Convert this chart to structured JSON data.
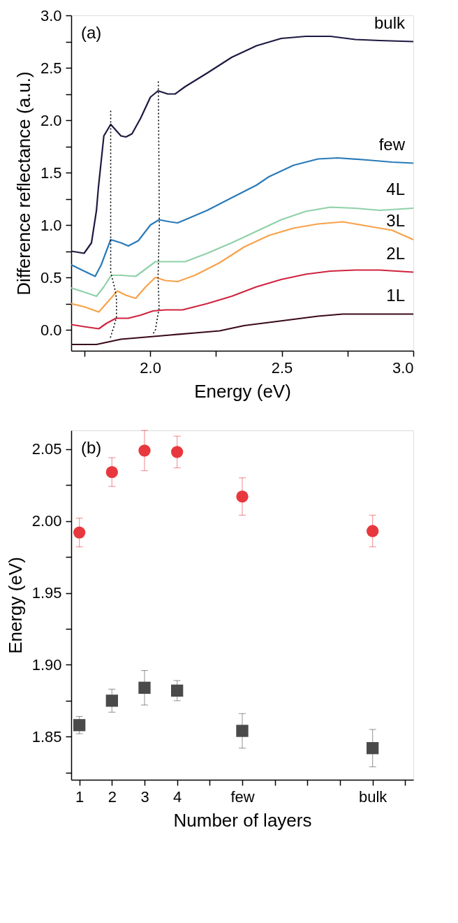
{
  "chart_data": [
    {
      "type": "line",
      "xlabel": "Energy (eV)",
      "ylabel": "Difference reflectance (a.u.)",
      "annotations": [
        "(a)"
      ],
      "grid": false,
      "line_style": "solid",
      "xlim": [
        1.7,
        3.0
      ],
      "xticks": [
        {
          "value": 1.75,
          "label": null
        },
        {
          "value": 2.0,
          "label": "2.0"
        },
        {
          "value": 2.25,
          "label": null
        },
        2.5,
        {
          "value": 2.75,
          "label": null
        },
        {
          "value": 3.0,
          "label": "3.0"
        }
      ],
      "ylim": [
        -0.2,
        3.0
      ],
      "yticks": [
        {
          "value": 0,
          "label": "0.0"
        },
        {
          "value": 0.25,
          "label": null
        },
        0.5,
        {
          "value": 0.75,
          "label": null
        },
        {
          "value": 1,
          "label": "1.0"
        },
        {
          "value": 1.25,
          "label": null
        },
        1.5,
        {
          "value": 1.75,
          "label": null
        },
        {
          "value": 2,
          "label": "2.0"
        },
        {
          "value": 2.25,
          "label": null
        },
        2.5,
        {
          "value": 2.75,
          "label": null
        },
        {
          "value": 3,
          "label": "3.0"
        }
      ],
      "series": [
        {
          "name": "bulk",
          "color": "#1c1a40",
          "x": [
            1.7,
            1.749,
            1.777,
            1.796,
            1.803,
            1.824,
            1.85,
            1.889,
            1.908,
            1.931,
            1.964,
            2.001,
            2.03,
            2.067,
            2.095,
            2.133,
            2.217,
            2.31,
            2.404,
            2.498,
            2.591,
            2.685,
            2.779,
            2.872,
            3.0
          ],
          "values": [
            0.75,
            0.73,
            0.83,
            1.14,
            1.35,
            1.85,
            1.96,
            1.85,
            1.84,
            1.87,
            2.02,
            2.22,
            2.28,
            2.25,
            2.25,
            2.32,
            2.45,
            2.6,
            2.71,
            2.78,
            2.8,
            2.8,
            2.77,
            2.76,
            2.75
          ]
        },
        {
          "name": "few",
          "color": "#2a7ab8",
          "x": [
            1.7,
            1.749,
            1.791,
            1.814,
            1.85,
            1.889,
            1.917,
            1.955,
            2.001,
            2.034,
            2.076,
            2.104,
            2.133,
            2.217,
            2.31,
            2.404,
            2.451,
            2.545,
            2.638,
            2.713,
            2.825,
            2.919,
            3.0
          ],
          "values": [
            0.62,
            0.56,
            0.51,
            0.62,
            0.86,
            0.83,
            0.8,
            0.85,
            1.0,
            1.05,
            1.03,
            1.02,
            1.05,
            1.14,
            1.26,
            1.38,
            1.46,
            1.57,
            1.63,
            1.64,
            1.62,
            1.6,
            1.59
          ]
        },
        {
          "name": "4L",
          "color": "#8fd1a8",
          "x": [
            1.7,
            1.749,
            1.796,
            1.824,
            1.852,
            1.889,
            1.945,
            1.983,
            2.02,
            2.076,
            2.133,
            2.217,
            2.31,
            2.404,
            2.498,
            2.591,
            2.685,
            2.779,
            2.872,
            3.0
          ],
          "values": [
            0.4,
            0.36,
            0.32,
            0.41,
            0.52,
            0.52,
            0.51,
            0.58,
            0.65,
            0.65,
            0.65,
            0.73,
            0.83,
            0.94,
            1.05,
            1.13,
            1.17,
            1.16,
            1.14,
            1.16
          ]
        },
        {
          "name": "3L",
          "color": "#f7a24a",
          "x": [
            1.7,
            1.749,
            1.805,
            1.833,
            1.875,
            1.908,
            1.945,
            1.983,
            2.02,
            2.058,
            2.104,
            2.17,
            2.264,
            2.357,
            2.451,
            2.545,
            2.638,
            2.732,
            2.825,
            2.919,
            3.0
          ],
          "values": [
            0.25,
            0.22,
            0.17,
            0.25,
            0.37,
            0.33,
            0.3,
            0.41,
            0.5,
            0.47,
            0.46,
            0.52,
            0.64,
            0.79,
            0.9,
            0.97,
            1.01,
            1.03,
            0.99,
            0.95,
            0.86
          ]
        },
        {
          "name": "2L",
          "color": "#d0243f",
          "x": [
            1.7,
            1.749,
            1.805,
            1.833,
            1.87,
            1.917,
            1.964,
            2.011,
            2.058,
            2.123,
            2.217,
            2.31,
            2.404,
            2.498,
            2.591,
            2.685,
            2.779,
            2.872,
            3.0
          ],
          "values": [
            0.05,
            0.03,
            0.01,
            0.06,
            0.11,
            0.11,
            0.14,
            0.18,
            0.19,
            0.19,
            0.25,
            0.32,
            0.41,
            0.48,
            0.53,
            0.56,
            0.57,
            0.57,
            0.55
          ]
        },
        {
          "name": "1L",
          "color": "#3a0a1a",
          "x": [
            1.7,
            1.796,
            1.889,
            1.983,
            2.076,
            2.17,
            2.264,
            2.357,
            2.451,
            2.545,
            2.638,
            2.732,
            2.825,
            2.919,
            3.0
          ],
          "values": [
            -0.14,
            -0.14,
            -0.09,
            -0.07,
            -0.05,
            -0.03,
            -0.01,
            0.04,
            0.07,
            0.1,
            0.13,
            0.15,
            0.15,
            0.15,
            0.15
          ]
        },
        {
          "color": "#000000",
          "line_style": "dotted",
          "x": [
            1.85,
            1.85,
            1.865,
            1.872,
            1.872,
            1.862,
            1.847
          ],
          "values": [
            2.09,
            0.55,
            0.4,
            0.3,
            0.12,
            0.03,
            -0.09
          ]
        },
        {
          "color": "#000000",
          "line_style": "dotted",
          "x": [
            2.031,
            2.035,
            2.03,
            2.034,
            2.02,
            2.011
          ],
          "values": [
            2.37,
            1.0,
            0.5,
            0.21,
            0.0,
            -0.04
          ]
        }
      ]
    },
    {
      "type": "scatter",
      "xlabel": "Number of layers",
      "ylabel": "Energy (eV)",
      "annotations": [
        "(b)"
      ],
      "grid": false,
      "xlim": [
        0.75,
        11.25
      ],
      "xticks": [
        1,
        2,
        3,
        4,
        {
          "value": 5,
          "label": null
        },
        {
          "value": 6,
          "label": "few"
        },
        {
          "value": 7,
          "label": null
        },
        {
          "value": 8,
          "label": null
        },
        {
          "value": 9,
          "label": null
        },
        {
          "value": 10,
          "label": "bulk"
        },
        {
          "value": 11,
          "label": null
        }
      ],
      "ylim": [
        1.82,
        2.063
      ],
      "yticks": [
        {
          "value": 1.825,
          "label": null
        },
        1.85,
        {
          "value": 1.875,
          "label": null
        },
        {
          "value": 1.9,
          "label": "1.90"
        },
        {
          "value": 1.925,
          "label": null
        },
        1.95,
        {
          "value": 1.975,
          "label": null
        },
        {
          "value": 2.0,
          "label": "2.00"
        },
        {
          "value": 2.025,
          "label": null
        },
        2.05
      ],
      "series": [
        {
          "color": "#e8383d",
          "marker": "circle",
          "x": [
            1,
            2,
            3,
            4,
            6,
            10
          ],
          "values": [
            1.992,
            2.034,
            2.049,
            2.048,
            2.017,
            1.993
          ],
          "errors": [
            0.01,
            0.01,
            0.014,
            0.011,
            0.013,
            0.011
          ]
        },
        {
          "color": "#4a4a4a",
          "marker": "square",
          "x": [
            1,
            2,
            3,
            4,
            6,
            10
          ],
          "values": [
            1.858,
            1.875,
            1.884,
            1.882,
            1.854,
            1.842
          ],
          "errors": [
            0.006,
            0.008,
            0.012,
            0.007,
            0.012,
            0.013
          ]
        }
      ]
    }
  ]
}
